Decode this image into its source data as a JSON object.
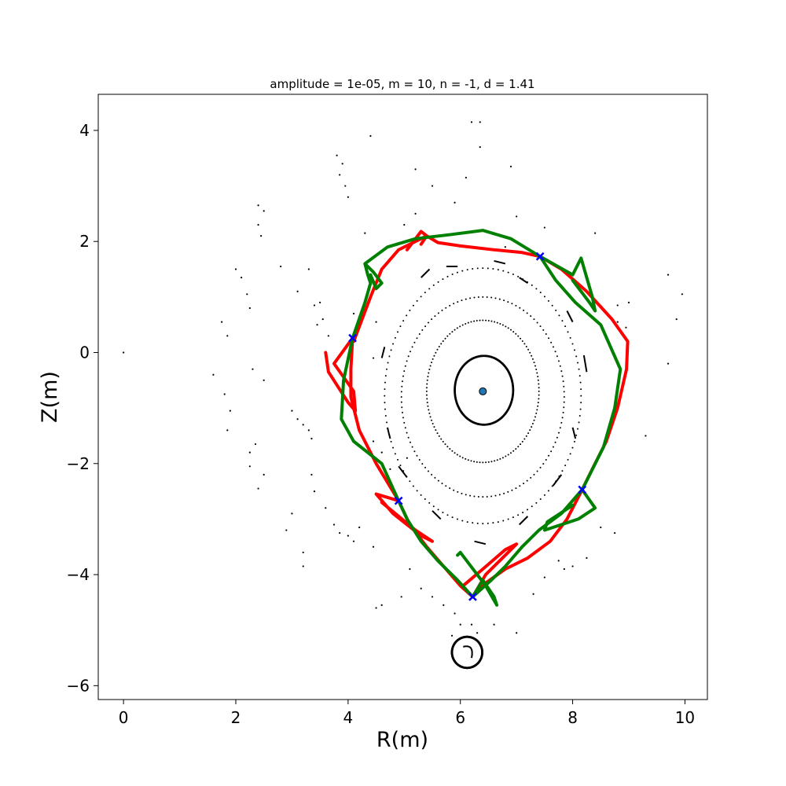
{
  "chart_data": {
    "type": "scatter",
    "title": "amplitude = 1e-05, m = 10, n = -1, d = 1.41",
    "xlabel": "R(m)",
    "ylabel": "Z(m)",
    "xlim": [
      -0.45,
      10.4
    ],
    "ylim": [
      -6.25,
      4.65
    ],
    "xticks": [
      0,
      2,
      4,
      6,
      8,
      10
    ],
    "yticks": [
      -6,
      -4,
      -2,
      0,
      2,
      4
    ],
    "grid": false,
    "legend": "none",
    "colors": {
      "unstable_manifold": "#ff0000",
      "stable_manifold": "#008000",
      "x_point_marker": "#0000ff",
      "axis_marker": "#1f77b4",
      "poincare_points": "#000000"
    },
    "magnetic_axis": {
      "R": 6.4,
      "Z": -0.7
    },
    "x_points": [
      {
        "R": 6.22,
        "Z": -4.4
      },
      {
        "R": 7.42,
        "Z": 1.73
      },
      {
        "R": 8.17,
        "Z": -2.47
      },
      {
        "R": 4.08,
        "Z": 0.26
      },
      {
        "R": 4.9,
        "Z": -2.67
      }
    ],
    "closed_surfaces": [
      {
        "center": [
          6.42,
          -0.68
        ],
        "rx": 0.52,
        "ry": 0.62,
        "dense": true
      },
      {
        "center": [
          6.4,
          -0.7
        ],
        "rx": 1.0,
        "ry": 1.28,
        "dense": false
      },
      {
        "center": [
          6.4,
          -0.8
        ],
        "rx": 1.45,
        "ry": 1.8,
        "dense": false
      },
      {
        "center": [
          6.4,
          -0.78
        ],
        "rx": 1.75,
        "ry": 2.3,
        "dense": false
      },
      {
        "center": [
          6.12,
          -5.4
        ],
        "rx": 0.27,
        "ry": 0.28,
        "dense": true
      }
    ],
    "island_chain": {
      "center": [
        6.4,
        -1.0
      ],
      "rx": 2.15,
      "ry": 2.7,
      "count": 14
    },
    "red_manifold": [
      [
        4.1,
        0.2
      ],
      [
        4.4,
        1.0
      ],
      [
        4.6,
        1.5
      ],
      [
        4.9,
        1.85
      ],
      [
        5.2,
        2.0
      ],
      [
        5.4,
        2.1
      ],
      [
        5.6,
        1.98
      ],
      [
        6.0,
        1.92
      ],
      [
        6.6,
        1.85
      ],
      [
        7.1,
        1.8
      ],
      [
        7.42,
        1.73
      ],
      [
        7.8,
        1.5
      ],
      [
        8.25,
        1.1
      ],
      [
        8.7,
        0.6
      ],
      [
        8.98,
        0.2
      ],
      [
        8.96,
        -0.3
      ],
      [
        8.8,
        -1.0
      ],
      [
        8.6,
        -1.6
      ],
      [
        8.35,
        -2.1
      ],
      [
        8.17,
        -2.47
      ],
      [
        7.9,
        -3.0
      ],
      [
        7.6,
        -3.4
      ],
      [
        7.2,
        -3.7
      ],
      [
        6.8,
        -3.9
      ],
      [
        6.45,
        -4.15
      ],
      [
        6.22,
        -4.4
      ],
      [
        6.0,
        -4.2
      ],
      [
        5.7,
        -3.85
      ],
      [
        5.4,
        -3.5
      ],
      [
        5.1,
        -3.1
      ],
      [
        4.9,
        -2.67
      ],
      [
        4.5,
        -2.0
      ],
      [
        4.2,
        -1.4
      ],
      [
        4.05,
        -0.8
      ],
      [
        4.05,
        -0.3
      ],
      [
        4.08,
        0.26
      ]
    ],
    "red_lobes": [
      [
        [
          4.08,
          0.26
        ],
        [
          3.75,
          -0.2
        ],
        [
          4.1,
          -0.7
        ],
        [
          4.13,
          -1.05
        ],
        [
          4.0,
          -0.9
        ],
        [
          3.65,
          -0.35
        ],
        [
          3.6,
          0.0
        ]
      ],
      [
        [
          4.9,
          -2.67
        ],
        [
          4.5,
          -2.55
        ],
        [
          4.8,
          -2.9
        ],
        [
          5.3,
          -3.3
        ],
        [
          5.5,
          -3.4
        ],
        [
          5.2,
          -3.2
        ],
        [
          4.6,
          -2.7
        ]
      ],
      [
        [
          6.22,
          -4.4
        ],
        [
          6.45,
          -4.0
        ],
        [
          6.9,
          -3.55
        ],
        [
          7.0,
          -3.45
        ],
        [
          6.8,
          -3.55
        ],
        [
          6.4,
          -3.9
        ],
        [
          6.05,
          -4.2
        ]
      ],
      [
        [
          5.05,
          1.85
        ],
        [
          5.3,
          2.18
        ],
        [
          5.4,
          2.1
        ],
        [
          5.3,
          1.95
        ]
      ]
    ],
    "green_manifold": [
      [
        4.3,
        1.6
      ],
      [
        4.7,
        1.9
      ],
      [
        5.2,
        2.05
      ],
      [
        5.8,
        2.12
      ],
      [
        6.4,
        2.2
      ],
      [
        6.9,
        2.05
      ],
      [
        7.42,
        1.73
      ],
      [
        7.7,
        1.3
      ],
      [
        8.05,
        0.9
      ],
      [
        8.5,
        0.5
      ],
      [
        8.85,
        -0.3
      ],
      [
        8.75,
        -1.0
      ],
      [
        8.55,
        -1.7
      ],
      [
        8.17,
        -2.47
      ],
      [
        7.8,
        -2.9
      ],
      [
        7.4,
        -3.2
      ],
      [
        7.1,
        -3.5
      ],
      [
        6.8,
        -3.85
      ],
      [
        6.55,
        -4.1
      ],
      [
        6.22,
        -4.4
      ],
      [
        5.95,
        -4.1
      ],
      [
        5.6,
        -3.75
      ],
      [
        5.3,
        -3.4
      ],
      [
        5.05,
        -3.0
      ],
      [
        4.9,
        -2.67
      ],
      [
        4.6,
        -2.0
      ],
      [
        4.1,
        -1.6
      ],
      [
        3.88,
        -1.2
      ],
      [
        3.92,
        -0.5
      ],
      [
        4.08,
        0.26
      ],
      [
        4.3,
        0.9
      ],
      [
        4.4,
        1.25
      ],
      [
        4.35,
        1.4
      ],
      [
        4.3,
        1.6
      ]
    ],
    "green_lobes": [
      [
        [
          7.42,
          1.73
        ],
        [
          8.0,
          1.4
        ],
        [
          8.15,
          1.7
        ],
        [
          8.35,
          1.0
        ],
        [
          8.4,
          0.75
        ],
        [
          8.3,
          0.9
        ],
        [
          8.0,
          1.3
        ]
      ],
      [
        [
          8.17,
          -2.47
        ],
        [
          8.4,
          -2.8
        ],
        [
          8.1,
          -3.0
        ],
        [
          7.5,
          -3.2
        ],
        [
          7.55,
          -3.05
        ],
        [
          8.0,
          -2.75
        ]
      ],
      [
        [
          6.22,
          -4.4
        ],
        [
          6.4,
          -4.1
        ],
        [
          6.6,
          -4.4
        ],
        [
          6.65,
          -4.55
        ],
        [
          6.45,
          -4.2
        ],
        [
          6.0,
          -3.6
        ],
        [
          5.95,
          -3.65
        ]
      ],
      [
        [
          4.3,
          1.6
        ],
        [
          4.45,
          1.45
        ],
        [
          4.6,
          1.25
        ],
        [
          4.5,
          1.15
        ],
        [
          4.4,
          1.4
        ]
      ]
    ],
    "scatter_points": [
      [
        0.0,
        0.0
      ],
      [
        3.8,
        3.55
      ],
      [
        3.9,
        3.4
      ],
      [
        3.85,
        3.2
      ],
      [
        3.95,
        3.0
      ],
      [
        4.0,
        2.8
      ],
      [
        4.4,
        3.9
      ],
      [
        5.2,
        3.3
      ],
      [
        5.5,
        3.0
      ],
      [
        5.9,
        2.7
      ],
      [
        6.1,
        3.15
      ],
      [
        6.2,
        4.15
      ],
      [
        6.35,
        4.15
      ],
      [
        6.35,
        3.7
      ],
      [
        6.9,
        3.35
      ],
      [
        7.0,
        2.45
      ],
      [
        7.5,
        2.25
      ],
      [
        8.4,
        2.15
      ],
      [
        9.7,
        1.4
      ],
      [
        9.95,
        1.05
      ],
      [
        9.85,
        0.6
      ],
      [
        9.7,
        -0.2
      ],
      [
        9.3,
        -1.5
      ],
      [
        9.0,
        0.9
      ],
      [
        8.95,
        0.45
      ],
      [
        8.8,
        0.55
      ],
      [
        8.8,
        0.85
      ],
      [
        2.4,
        2.65
      ],
      [
        2.5,
        2.55
      ],
      [
        2.4,
        2.3
      ],
      [
        2.45,
        2.1
      ],
      [
        2.0,
        1.5
      ],
      [
        2.1,
        1.35
      ],
      [
        2.2,
        1.05
      ],
      [
        2.25,
        0.8
      ],
      [
        1.75,
        0.55
      ],
      [
        1.85,
        0.3
      ],
      [
        1.6,
        -0.4
      ],
      [
        1.8,
        -0.75
      ],
      [
        1.9,
        -1.05
      ],
      [
        1.85,
        -1.4
      ],
      [
        2.25,
        -1.8
      ],
      [
        2.35,
        -1.65
      ],
      [
        2.25,
        -2.05
      ],
      [
        2.4,
        -2.45
      ],
      [
        2.5,
        -2.2
      ],
      [
        2.3,
        -0.3
      ],
      [
        2.5,
        -0.5
      ],
      [
        2.8,
        1.55
      ],
      [
        3.1,
        1.1
      ],
      [
        3.0,
        -1.05
      ],
      [
        3.1,
        -1.2
      ],
      [
        3.2,
        -1.3
      ],
      [
        3.3,
        -1.4
      ],
      [
        3.35,
        -1.55
      ],
      [
        3.4,
        0.85
      ],
      [
        3.5,
        0.9
      ],
      [
        3.55,
        0.6
      ],
      [
        3.45,
        0.5
      ],
      [
        3.65,
        0.3
      ],
      [
        3.35,
        -2.2
      ],
      [
        3.4,
        -2.5
      ],
      [
        3.6,
        -2.8
      ],
      [
        3.75,
        -3.1
      ],
      [
        3.85,
        -3.25
      ],
      [
        4.0,
        -3.3
      ],
      [
        4.1,
        -3.4
      ],
      [
        4.2,
        -3.15
      ],
      [
        4.45,
        -3.5
      ],
      [
        4.5,
        -4.6
      ],
      [
        4.6,
        -4.55
      ],
      [
        4.95,
        -4.4
      ],
      [
        5.1,
        -3.9
      ],
      [
        5.3,
        -4.25
      ],
      [
        5.5,
        -4.4
      ],
      [
        5.7,
        -4.55
      ],
      [
        5.9,
        -4.7
      ],
      [
        6.0,
        -4.9
      ],
      [
        5.85,
        -5.1
      ],
      [
        6.2,
        -4.9
      ],
      [
        6.3,
        -5.05
      ],
      [
        6.6,
        -4.9
      ],
      [
        7.0,
        -5.05
      ],
      [
        7.3,
        -4.35
      ],
      [
        7.5,
        -4.05
      ],
      [
        7.75,
        -3.75
      ],
      [
        7.85,
        -3.9
      ],
      [
        8.0,
        -3.85
      ],
      [
        8.25,
        -3.7
      ],
      [
        8.5,
        -3.15
      ],
      [
        8.75,
        -3.25
      ],
      [
        3.0,
        -2.9
      ],
      [
        2.9,
        -3.2
      ],
      [
        3.2,
        -3.85
      ],
      [
        3.2,
        -3.6
      ],
      [
        4.75,
        -2.1
      ],
      [
        5.05,
        -1.9
      ],
      [
        4.45,
        -1.6
      ],
      [
        4.6,
        -1.8
      ],
      [
        4.45,
        -0.1
      ],
      [
        4.5,
        0.55
      ],
      [
        4.1,
        0.7
      ],
      [
        4.3,
        2.15
      ],
      [
        3.3,
        1.5
      ],
      [
        6.8,
        1.9
      ],
      [
        5.0,
        2.3
      ],
      [
        5.2,
        2.5
      ]
    ],
    "chain_streaks": [
      [
        [
          5.3,
          1.35
        ],
        [
          5.45,
          1.5
        ]
      ],
      [
        [
          5.75,
          1.55
        ],
        [
          5.95,
          1.55
        ]
      ],
      [
        [
          6.6,
          1.65
        ],
        [
          6.8,
          1.6
        ]
      ],
      [
        [
          7.05,
          1.35
        ],
        [
          7.2,
          1.25
        ]
      ],
      [
        [
          7.9,
          0.75
        ],
        [
          8.0,
          0.55
        ]
      ],
      [
        [
          8.2,
          -0.05
        ],
        [
          8.25,
          -0.35
        ]
      ],
      [
        [
          8.0,
          -1.35
        ],
        [
          8.05,
          -1.55
        ]
      ],
      [
        [
          7.65,
          -2.4
        ],
        [
          7.8,
          -2.2
        ]
      ],
      [
        [
          7.05,
          -3.1
        ],
        [
          7.2,
          -2.95
        ]
      ],
      [
        [
          6.25,
          -3.4
        ],
        [
          6.45,
          -3.45
        ]
      ],
      [
        [
          5.5,
          -2.85
        ],
        [
          5.65,
          -3.0
        ]
      ],
      [
        [
          4.9,
          -2.05
        ],
        [
          5.05,
          -2.25
        ]
      ],
      [
        [
          4.7,
          -1.35
        ],
        [
          4.75,
          -1.55
        ]
      ],
      [
        [
          4.6,
          -0.1
        ],
        [
          4.65,
          0.1
        ]
      ]
    ]
  }
}
